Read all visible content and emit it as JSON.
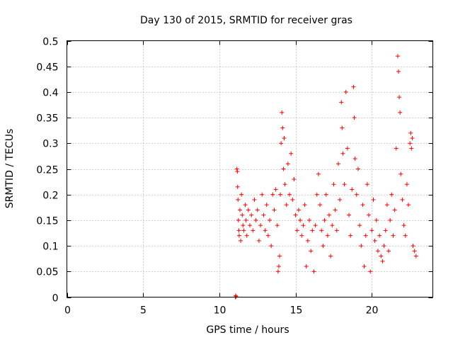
{
  "chart_data": {
    "type": "scatter",
    "title": "Day 130 of 2015, SRMTID for receiver gras",
    "xlabel": "GPS time / hours",
    "ylabel": "SRMTID / TECUs",
    "xlim": [
      0,
      24
    ],
    "ylim": [
      0,
      0.5
    ],
    "x_ticks": [
      0,
      5,
      10,
      15,
      20
    ],
    "x_tick_labels": [
      "0",
      "5",
      "10",
      "15",
      "20"
    ],
    "y_ticks": [
      0,
      0.05,
      0.1,
      0.15,
      0.2,
      0.25,
      0.3,
      0.35,
      0.4,
      0.45,
      0.5
    ],
    "y_tick_labels": [
      "0",
      "0.05",
      "0.1",
      "0.15",
      "0.2",
      "0.25",
      "0.3",
      "0.35",
      "0.4",
      "0.45",
      "0.5"
    ],
    "grid": true,
    "marker": "+",
    "color": "#ff0000",
    "series": [
      {
        "name": "SRMTID",
        "points": [
          [
            11.05,
            0.0
          ],
          [
            11.07,
            0.003
          ],
          [
            11.1,
            0.001
          ],
          [
            11.15,
            0.25
          ],
          [
            11.18,
            0.245
          ],
          [
            11.2,
            0.215
          ],
          [
            11.22,
            0.19
          ],
          [
            11.25,
            0.15
          ],
          [
            11.28,
            0.13
          ],
          [
            11.3,
            0.12
          ],
          [
            11.35,
            0.17
          ],
          [
            11.4,
            0.11
          ],
          [
            11.45,
            0.2
          ],
          [
            11.5,
            0.16
          ],
          [
            11.55,
            0.14
          ],
          [
            11.6,
            0.13
          ],
          [
            11.7,
            0.18
          ],
          [
            11.75,
            0.15
          ],
          [
            11.8,
            0.12
          ],
          [
            11.9,
            0.17
          ],
          [
            12.0,
            0.14
          ],
          [
            12.1,
            0.16
          ],
          [
            12.2,
            0.13
          ],
          [
            12.3,
            0.19
          ],
          [
            12.4,
            0.15
          ],
          [
            12.5,
            0.17
          ],
          [
            12.6,
            0.11
          ],
          [
            12.7,
            0.14
          ],
          [
            12.8,
            0.2
          ],
          [
            12.9,
            0.16
          ],
          [
            13.0,
            0.13
          ],
          [
            13.1,
            0.18
          ],
          [
            13.2,
            0.12
          ],
          [
            13.3,
            0.15
          ],
          [
            13.4,
            0.1
          ],
          [
            13.5,
            0.2
          ],
          [
            13.6,
            0.17
          ],
          [
            13.7,
            0.21
          ],
          [
            13.8,
            0.14
          ],
          [
            13.85,
            0.05
          ],
          [
            13.9,
            0.06
          ],
          [
            13.95,
            0.08
          ],
          [
            14.0,
            0.2
          ],
          [
            14.05,
            0.3
          ],
          [
            14.1,
            0.36
          ],
          [
            14.15,
            0.33
          ],
          [
            14.2,
            0.25
          ],
          [
            14.25,
            0.31
          ],
          [
            14.3,
            0.22
          ],
          [
            14.4,
            0.18
          ],
          [
            14.5,
            0.26
          ],
          [
            14.6,
            0.2
          ],
          [
            14.7,
            0.28
          ],
          [
            14.8,
            0.19
          ],
          [
            14.9,
            0.23
          ],
          [
            15.0,
            0.16
          ],
          [
            15.1,
            0.13
          ],
          [
            15.2,
            0.17
          ],
          [
            15.3,
            0.15
          ],
          [
            15.4,
            0.12
          ],
          [
            15.5,
            0.14
          ],
          [
            15.6,
            0.18
          ],
          [
            15.7,
            0.06
          ],
          [
            15.8,
            0.11
          ],
          [
            15.9,
            0.15
          ],
          [
            16.0,
            0.09
          ],
          [
            16.1,
            0.13
          ],
          [
            16.2,
            0.05
          ],
          [
            16.3,
            0.14
          ],
          [
            16.4,
            0.2
          ],
          [
            16.5,
            0.24
          ],
          [
            16.6,
            0.18
          ],
          [
            16.7,
            0.13
          ],
          [
            16.8,
            0.1
          ],
          [
            16.9,
            0.15
          ],
          [
            17.0,
            0.2
          ],
          [
            17.1,
            0.12
          ],
          [
            17.2,
            0.16
          ],
          [
            17.3,
            0.08
          ],
          [
            17.4,
            0.14
          ],
          [
            17.5,
            0.22
          ],
          [
            17.6,
            0.17
          ],
          [
            17.7,
            0.13
          ],
          [
            17.8,
            0.26
          ],
          [
            17.9,
            0.19
          ],
          [
            18.0,
            0.38
          ],
          [
            18.05,
            0.33
          ],
          [
            18.1,
            0.28
          ],
          [
            18.2,
            0.22
          ],
          [
            18.3,
            0.4
          ],
          [
            18.4,
            0.29
          ],
          [
            18.5,
            0.16
          ],
          [
            18.6,
            0.12
          ],
          [
            18.7,
            0.21
          ],
          [
            18.8,
            0.41
          ],
          [
            18.85,
            0.35
          ],
          [
            18.9,
            0.27
          ],
          [
            19.0,
            0.2
          ],
          [
            19.1,
            0.25
          ],
          [
            19.2,
            0.14
          ],
          [
            19.3,
            0.1
          ],
          [
            19.4,
            0.18
          ],
          [
            19.5,
            0.06
          ],
          [
            19.6,
            0.12
          ],
          [
            19.7,
            0.22
          ],
          [
            19.8,
            0.16
          ],
          [
            19.9,
            0.05
          ],
          [
            20.0,
            0.13
          ],
          [
            20.1,
            0.19
          ],
          [
            20.2,
            0.11
          ],
          [
            20.3,
            0.15
          ],
          [
            20.4,
            0.09
          ],
          [
            20.5,
            0.12
          ],
          [
            20.6,
            0.08
          ],
          [
            20.7,
            0.07
          ],
          [
            20.8,
            0.1
          ],
          [
            20.9,
            0.13
          ],
          [
            21.0,
            0.18
          ],
          [
            21.1,
            0.09
          ],
          [
            21.2,
            0.15
          ],
          [
            21.3,
            0.2
          ],
          [
            21.4,
            0.12
          ],
          [
            21.5,
            0.17
          ],
          [
            21.6,
            0.29
          ],
          [
            21.7,
            0.47
          ],
          [
            21.75,
            0.44
          ],
          [
            21.8,
            0.39
          ],
          [
            21.85,
            0.36
          ],
          [
            21.9,
            0.24
          ],
          [
            22.0,
            0.19
          ],
          [
            22.1,
            0.14
          ],
          [
            22.2,
            0.12
          ],
          [
            22.3,
            0.22
          ],
          [
            22.4,
            0.18
          ],
          [
            22.5,
            0.3
          ],
          [
            22.55,
            0.32
          ],
          [
            22.6,
            0.29
          ],
          [
            22.65,
            0.31
          ],
          [
            22.7,
            0.1
          ],
          [
            22.8,
            0.09
          ],
          [
            22.9,
            0.08
          ]
        ]
      }
    ]
  }
}
